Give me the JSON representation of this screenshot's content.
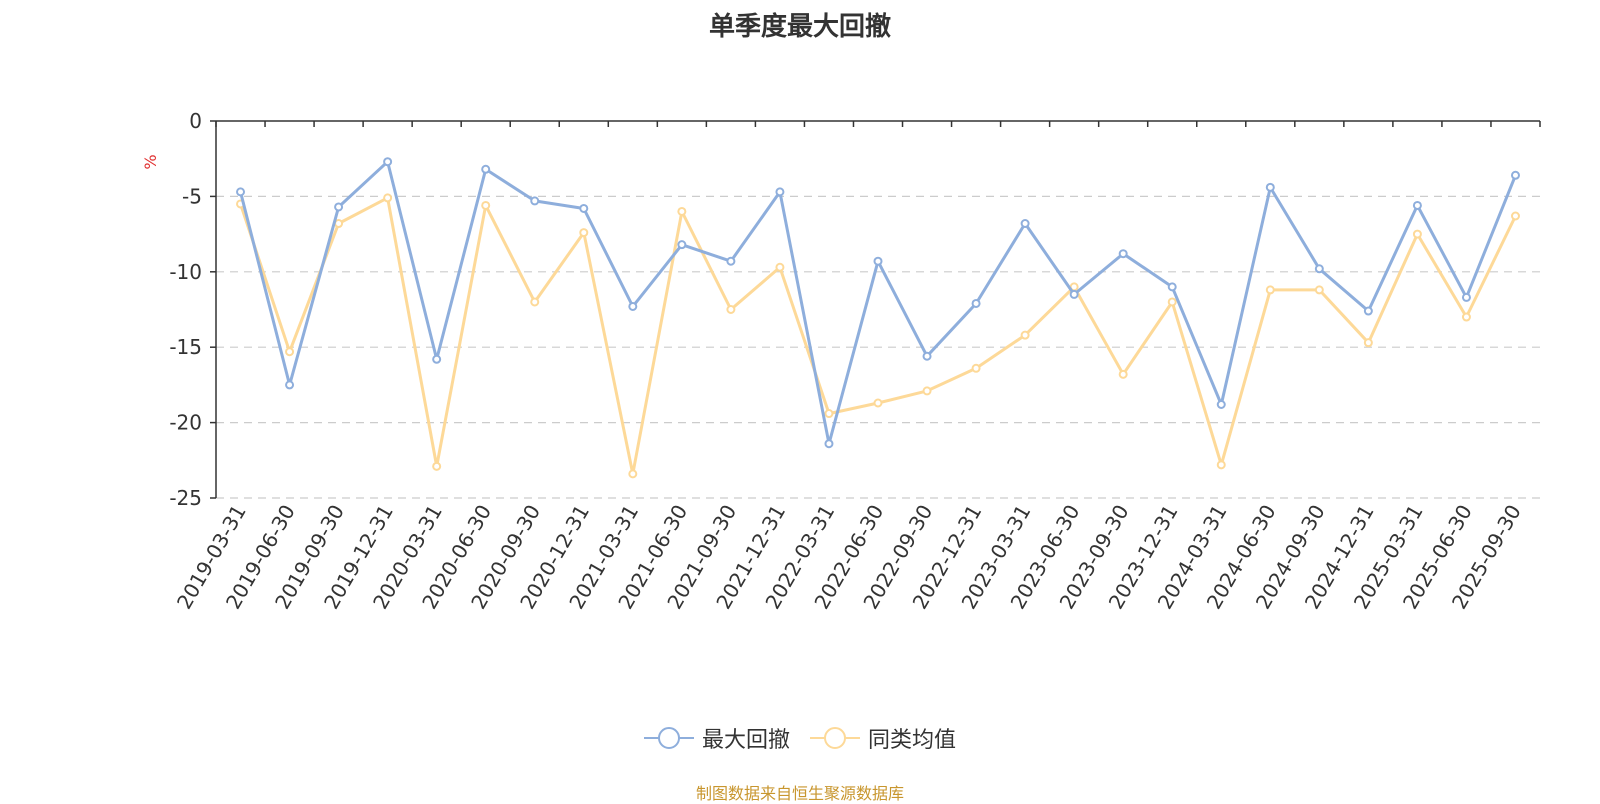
{
  "chart_data": {
    "type": "line",
    "title": "单季度最大回撤",
    "ylabel": "%",
    "xlabel": "",
    "ylim": [
      -25,
      0
    ],
    "yticks": [
      0,
      -5,
      -10,
      -15,
      -20,
      -25
    ],
    "grid": true,
    "legend_position": "bottom-center",
    "categories": [
      "2019-03-31",
      "2019-06-30",
      "2019-09-30",
      "2019-12-31",
      "2020-03-31",
      "2020-06-30",
      "2020-09-30",
      "2020-12-31",
      "2021-03-31",
      "2021-06-30",
      "2021-09-30",
      "2021-12-31",
      "2022-03-31",
      "2022-06-30",
      "2022-09-30",
      "2022-12-31",
      "2023-03-31",
      "2023-06-30",
      "2023-09-30",
      "2023-12-31",
      "2024-03-31",
      "2024-06-30",
      "2024-09-30",
      "2024-12-31",
      "2025-03-31",
      "2025-06-30",
      "2025-09-30"
    ],
    "series": [
      {
        "name": "最大回撤",
        "color": "#8eaedc",
        "values": [
          -4.7,
          -17.5,
          -5.7,
          -2.7,
          -15.8,
          -3.2,
          -5.3,
          -5.8,
          -12.3,
          -8.2,
          -9.3,
          -4.7,
          -21.4,
          -9.3,
          -15.6,
          -12.1,
          -6.8,
          -11.5,
          -8.8,
          -11.0,
          -18.8,
          -4.4,
          -9.8,
          -12.6,
          -5.6,
          -11.7,
          -3.6
        ]
      },
      {
        "name": "同类均值",
        "color": "#fdd998",
        "values": [
          -5.5,
          -15.3,
          -6.8,
          -5.1,
          -22.9,
          -5.6,
          -12.0,
          -7.4,
          -23.4,
          -6.0,
          -12.5,
          -9.7,
          -19.4,
          -18.7,
          -17.9,
          -16.4,
          -14.2,
          -11.0,
          -16.8,
          -12.0,
          -22.8,
          -11.2,
          -11.2,
          -14.7,
          -7.5,
          -13.0,
          -6.3
        ]
      }
    ]
  },
  "source_text": "制图数据来自恒生聚源数据库",
  "source_color": "#c8962e",
  "axis_unit_color": "#e03030"
}
